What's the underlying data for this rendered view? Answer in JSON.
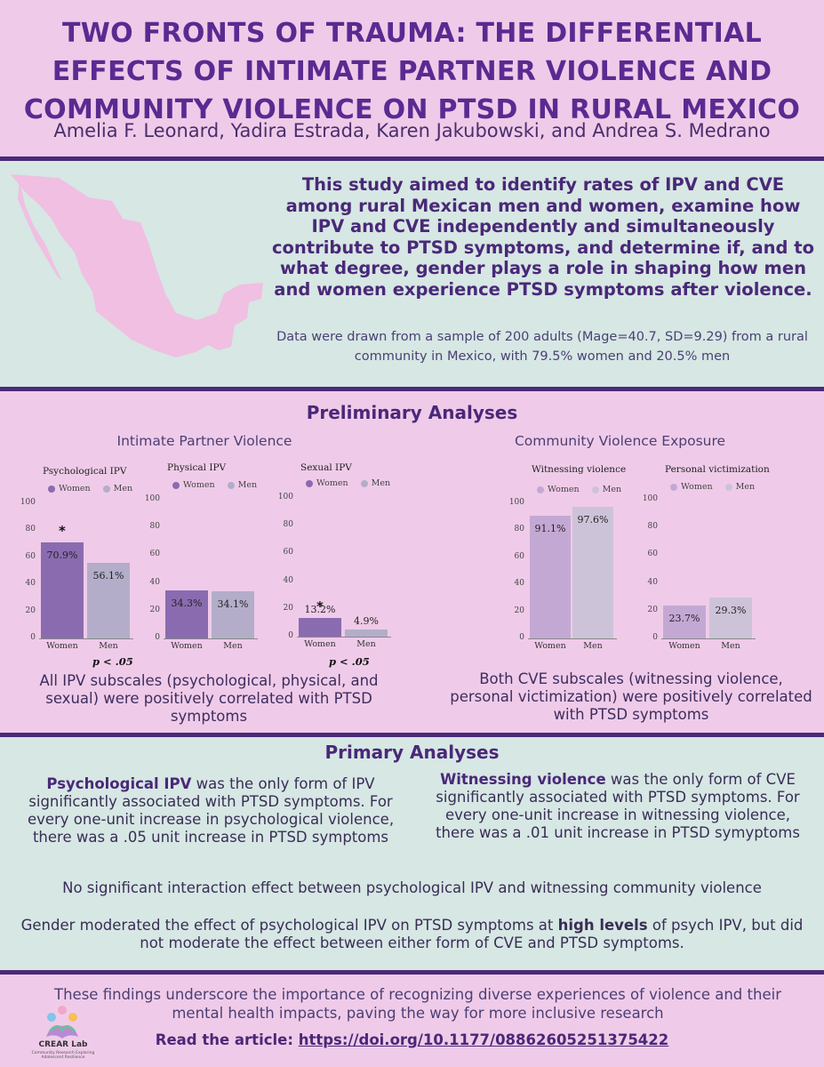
{
  "header": {
    "title": "TWO FRONTS OF TRAUMA: THE DIFFERENTIAL EFFECTS OF INTIMATE PARTNER VIOLENCE AND COMMUNITY VIOLENCE ON PTSD IN RURAL MEXICO",
    "authors": "Amelia F. Leonard, Yadira Estrada, Karen Jakubowski, and Andrea S. Medrano"
  },
  "intro": {
    "aim": "This study aimed to identify rates of IPV and CVE among rural Mexican men and women, examine how IPV and CVE independently and simultaneously contribute to PTSD symptoms, and determine if, and to what degree, gender plays a role in shaping how men and women experience PTSD symptoms after violence.",
    "sample": "Data were drawn from a sample of 200 adults (Mage=40.7, SD=9.29) from a rural community in Mexico, with 79.5% women and 20.5% men"
  },
  "preliminary": {
    "heading": "Preliminary Analyses",
    "ipv_heading": "Intimate Partner Violence",
    "cve_heading": "Community Violence Exposure",
    "ipv_caption": "All IPV subscales (psychological, physical, and sexual) were positively correlated with PTSD symptoms",
    "cve_caption": "Both CVE subscales (witnessing violence, personal victimization) were positively correlated with PTSD symptoms",
    "pnote": "p < .05"
  },
  "chart_data": [
    {
      "type": "bar",
      "title": "Psychological IPV",
      "categories": [
        "Women",
        "Men"
      ],
      "values": [
        70.9,
        56.1
      ],
      "labels": [
        "70.9%",
        "56.1%"
      ],
      "legend": [
        "Women",
        "Men"
      ],
      "ylim": [
        0,
        100
      ],
      "yticks": [
        0,
        20,
        40,
        60,
        80,
        100
      ],
      "significant": true
    },
    {
      "type": "bar",
      "title": "Physical IPV",
      "categories": [
        "Women",
        "Men"
      ],
      "values": [
        34.3,
        34.1
      ],
      "labels": [
        "34.3%",
        "34.1%"
      ],
      "legend": [
        "Women",
        "Men"
      ],
      "ylim": [
        0,
        100
      ],
      "yticks": [
        0,
        20,
        40,
        60,
        80,
        100
      ],
      "significant": false
    },
    {
      "type": "bar",
      "title": "Sexual IPV",
      "categories": [
        "Women",
        "Men"
      ],
      "values": [
        13.2,
        4.9
      ],
      "labels": [
        "13.2%",
        "4.9%"
      ],
      "legend": [
        "Women",
        "Men"
      ],
      "ylim": [
        0,
        100
      ],
      "yticks": [
        0,
        20,
        40,
        60,
        80,
        100
      ],
      "significant": true
    },
    {
      "type": "bar",
      "title": "Witnessing violence",
      "categories": [
        "Women",
        "Men"
      ],
      "values": [
        91.1,
        97.6
      ],
      "labels": [
        "91.1%",
        "97.6%"
      ],
      "legend": [
        "Women",
        "Men"
      ],
      "ylim": [
        0,
        100
      ],
      "yticks": [
        0,
        20,
        40,
        60,
        80,
        100
      ],
      "significant": false
    },
    {
      "type": "bar",
      "title": "Personal victimization",
      "categories": [
        "Women",
        "Men"
      ],
      "values": [
        23.7,
        29.3
      ],
      "labels": [
        "23.7%",
        "29.3%"
      ],
      "legend": [
        "Women",
        "Men"
      ],
      "ylim": [
        0,
        100
      ],
      "yticks": [
        0,
        20,
        40,
        60,
        80,
        100
      ],
      "significant": false
    }
  ],
  "primary": {
    "heading": "Primary Analyses",
    "left_bold": "Psychological IPV",
    "left_text": " was the only form of IPV significantly associated with PTSD symptoms. For every one-unit increase in psychological violence, there was a .05 unit increase in PTSD symptoms",
    "right_bold": "Witnessing violence",
    "right_text": " was the only form of CVE significantly associated with PTSD symptoms. For every one-unit increase in witnessing violence, there was a .01 unit increase in PTSD symyptoms",
    "interaction": "No significant interaction effect between psychological IPV and witnessing community violence",
    "gender_a": "Gender moderated the effect of psychological IPV on PTSD symptoms at ",
    "gender_bold": "high levels",
    "gender_b": " of psych IPV, but did not moderate the effect between either form of CVE and PTSD symptoms."
  },
  "footer": {
    "conclusion": "These findings underscore the importance of recognizing diverse experiences of violence and their mental health impacts, paving the way for more inclusive research",
    "read_label": "Read the article: ",
    "doi": "https://doi.org/10.1177/08862605251375422",
    "logo_name": "CREAR Lab",
    "logo_sub": "Community Research Exploring Adolescent Resilience"
  },
  "colors": {
    "ipv_women": "#8a6bb0",
    "ipv_men": "#b3adc9",
    "cve_women": "#c4a8d4",
    "cve_men": "#cdc3d8",
    "title": "#5b2a91"
  }
}
